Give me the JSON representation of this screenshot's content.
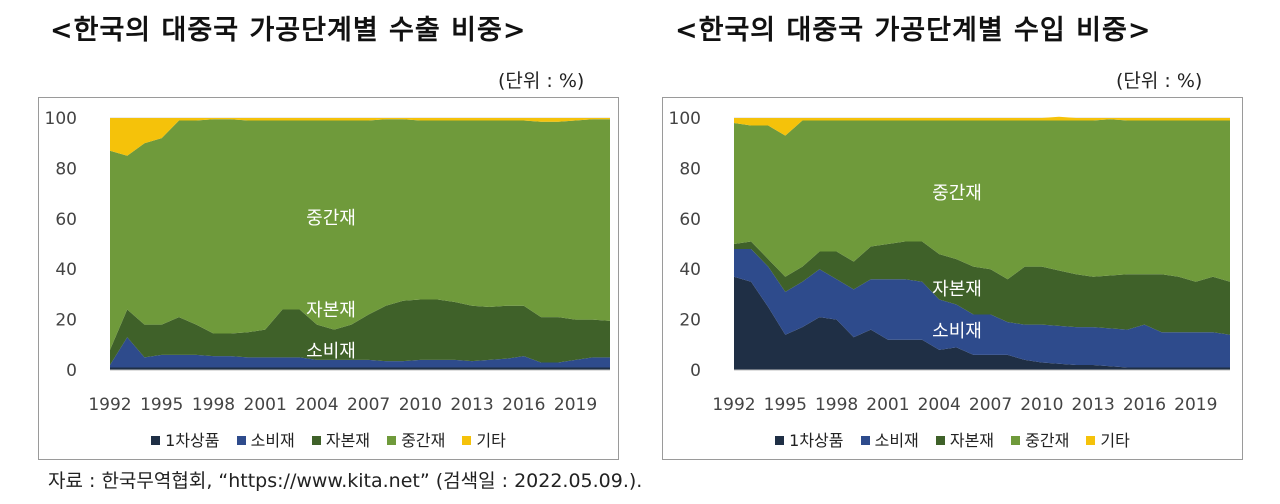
{
  "colors": {
    "primary": "#1f2f45",
    "consumer": "#2e4b8c",
    "capital": "#3f6129",
    "intermediate": "#6f9a3b",
    "other": "#f5c20a"
  },
  "legend": [
    "1차상품",
    "소비재",
    "자본재",
    "중간재",
    "기타"
  ],
  "source_note": "자료 : 한국무역협회, “https://www.kita.net” (검색일 : 2022.05.09.).",
  "chart_data": [
    {
      "type": "area",
      "title": "<한국의 대중국 가공단계별 수출 비중>",
      "unit": "(단위 : %)",
      "x": [
        1992,
        1993,
        1994,
        1995,
        1996,
        1997,
        1998,
        1999,
        2000,
        2001,
        2002,
        2003,
        2004,
        2005,
        2006,
        2007,
        2008,
        2009,
        2010,
        2011,
        2012,
        2013,
        2014,
        2015,
        2016,
        2017,
        2018,
        2019,
        2020,
        2021
      ],
      "x_tick_labels": [
        "1992",
        "1995",
        "1998",
        "2001",
        "2004",
        "2007",
        "2010",
        "2013",
        "2016",
        "2019"
      ],
      "y_ticks": [
        "0",
        "20",
        "40",
        "60",
        "80",
        "100"
      ],
      "ylim": [
        0,
        100
      ],
      "stacked": true,
      "series": [
        {
          "name": "1차상품",
          "color_key": "primary",
          "values": [
            1,
            1,
            1,
            1,
            1,
            1,
            1,
            1,
            1,
            1,
            1,
            1,
            1,
            1,
            1,
            1,
            1,
            1,
            1,
            1,
            1,
            1,
            1,
            1,
            1,
            1,
            1,
            1,
            1,
            1
          ]
        },
        {
          "name": "소비재",
          "color_key": "consumer",
          "values": [
            1,
            12,
            4,
            5,
            5,
            5,
            4.5,
            4.5,
            4,
            4,
            4,
            4,
            3,
            3,
            3,
            3,
            2.5,
            2.5,
            3,
            3,
            3,
            2.5,
            3,
            3.5,
            4.5,
            2,
            2,
            3,
            4,
            4
          ]
        },
        {
          "name": "자본재",
          "color_key": "capital",
          "values": [
            6,
            11,
            13,
            12,
            15,
            12,
            9,
            9,
            10,
            11,
            19,
            19,
            14,
            12,
            14,
            18,
            22,
            24,
            24,
            24,
            23,
            22,
            21,
            21,
            20,
            18,
            18,
            16,
            15,
            14.5
          ]
        },
        {
          "name": "중간재",
          "color_key": "intermediate",
          "values": [
            79,
            61,
            72,
            74,
            78,
            81,
            85,
            85,
            84,
            83,
            75,
            75,
            81,
            83,
            81,
            77,
            74,
            72,
            71,
            71,
            72,
            73.5,
            74,
            73.5,
            73.5,
            77.5,
            77.5,
            79,
            79.5,
            80
          ]
        },
        {
          "name": "기타",
          "color_key": "other",
          "values": [
            13,
            15,
            10,
            8,
            1,
            1,
            0.5,
            0.5,
            1,
            1,
            1,
            1,
            1,
            1,
            1,
            1,
            0.5,
            0.5,
            1,
            1,
            1,
            1,
            1,
            1,
            1,
            1.5,
            1.5,
            1,
            0.5,
            0.5
          ]
        }
      ],
      "annotations": [
        "중간재",
        "자본재",
        "소비재"
      ]
    },
    {
      "type": "area",
      "title": "<한국의 대중국 가공단계별 수입 비중>",
      "unit": "(단위 : %)",
      "x": [
        1992,
        1993,
        1994,
        1995,
        1996,
        1997,
        1998,
        1999,
        2000,
        2001,
        2002,
        2003,
        2004,
        2005,
        2006,
        2007,
        2008,
        2009,
        2010,
        2011,
        2012,
        2013,
        2014,
        2015,
        2016,
        2017,
        2018,
        2019,
        2020,
        2021
      ],
      "x_tick_labels": [
        "1992",
        "1995",
        "1998",
        "2001",
        "2004",
        "2007",
        "2010",
        "2013",
        "2016",
        "2019"
      ],
      "y_ticks": [
        "0",
        "20",
        "40",
        "60",
        "80",
        "100"
      ],
      "ylim": [
        0,
        100
      ],
      "stacked": true,
      "series": [
        {
          "name": "1차상품",
          "color_key": "primary",
          "values": [
            37,
            35,
            25,
            14,
            17,
            21,
            20,
            13,
            16,
            12,
            12,
            12,
            8,
            9,
            6,
            6,
            6,
            4,
            3,
            2.5,
            2,
            2,
            1.5,
            1,
            1,
            1,
            1,
            1,
            1,
            1
          ]
        },
        {
          "name": "소비재",
          "color_key": "consumer",
          "values": [
            11,
            13,
            16,
            17,
            18,
            19,
            16,
            19,
            20,
            24,
            24,
            23,
            20,
            17,
            16,
            16,
            13,
            14,
            15,
            15,
            15,
            15,
            15,
            15,
            17,
            14,
            14,
            14,
            14,
            13
          ]
        },
        {
          "name": "자본재",
          "color_key": "capital",
          "values": [
            2,
            3,
            3,
            6,
            6,
            7,
            11,
            11,
            13,
            14,
            15,
            16,
            18,
            18,
            19,
            18,
            17,
            23,
            23,
            22,
            21,
            20,
            21,
            22,
            20,
            23,
            22,
            20,
            22,
            21
          ]
        },
        {
          "name": "중간재",
          "color_key": "intermediate",
          "values": [
            48,
            46,
            53,
            56,
            58,
            52,
            52,
            56,
            50,
            49,
            48,
            48,
            53,
            55,
            58,
            59,
            63,
            58,
            58,
            59.5,
            61,
            62,
            62,
            61,
            61,
            61,
            62,
            64,
            62,
            64
          ]
        },
        {
          "name": "기타",
          "color_key": "other",
          "values": [
            2,
            3,
            3,
            7,
            1,
            1,
            1,
            1,
            1,
            1,
            1,
            1,
            1,
            1,
            1,
            1,
            1,
            1,
            1,
            1.5,
            1,
            1,
            0.5,
            1,
            1,
            1,
            1,
            1,
            1,
            1
          ]
        }
      ],
      "annotations": [
        "중간재",
        "자본재",
        "소비재"
      ]
    }
  ]
}
